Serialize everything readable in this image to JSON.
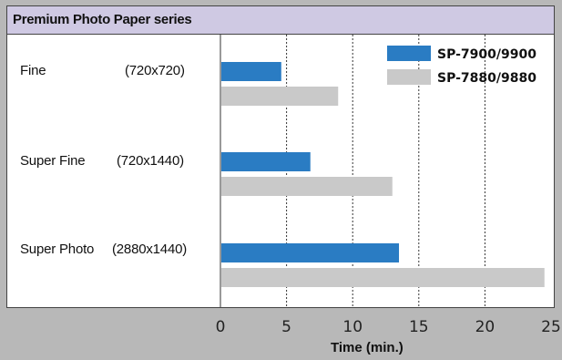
{
  "chart_data": {
    "type": "bar",
    "orientation": "horizontal",
    "title": "Premium Photo Paper series",
    "categories": [
      {
        "name": "Fine",
        "resolution": "(720x720)"
      },
      {
        "name": "Super Fine",
        "resolution": "(720x1440)"
      },
      {
        "name": "Super Photo",
        "resolution": "(2880x1440)"
      }
    ],
    "series": [
      {
        "name": "SP-7900/9900",
        "color": "#2a7cc3",
        "values": [
          4.6,
          6.8,
          13.5
        ]
      },
      {
        "name": "SP-7880/9880",
        "color": "#c9c9c9",
        "values": [
          8.9,
          13.0,
          24.5
        ]
      }
    ],
    "xlabel": "Time (min.)",
    "xlim": [
      0,
      25
    ],
    "xticks": [
      0,
      5,
      10,
      15,
      20,
      25
    ],
    "grid": "vertical dotted",
    "legend_position": "top-right"
  }
}
